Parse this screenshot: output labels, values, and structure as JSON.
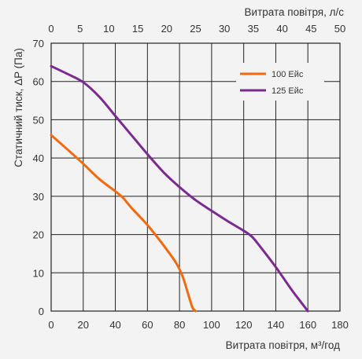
{
  "chart_data": {
    "type": "line",
    "title": "",
    "xlabel": "Витрата повітря, м³/год",
    "ylabel": "Статичний тиск, ΔP (Па)",
    "x2label": "Витрата повітря, л/с",
    "xlim": [
      0,
      180
    ],
    "ylim": [
      0,
      70
    ],
    "x2lim": [
      0,
      50
    ],
    "xticks": [
      "0",
      "20",
      "40",
      "60",
      "80",
      "100",
      "120",
      "140",
      "160",
      "180"
    ],
    "x2ticks": [
      "0",
      "5",
      "10",
      "15",
      "20",
      "25",
      "30",
      "35",
      "40",
      "45",
      "50"
    ],
    "yticks": [
      "0",
      "10",
      "20",
      "30",
      "40",
      "50",
      "60",
      "70"
    ],
    "grid": true,
    "legend_position": "top-right",
    "series": [
      {
        "name": "100 Ейс",
        "color": "#f26a10",
        "x": [
          0,
          10,
          20,
          30,
          40,
          45,
          50,
          60,
          70,
          78,
          82,
          85,
          88,
          90
        ],
        "y": [
          46,
          42.3,
          38.5,
          34.5,
          31.3,
          29.5,
          27,
          22.5,
          17.2,
          12.5,
          9,
          5,
          1,
          0
        ]
      },
      {
        "name": "125 Ейс",
        "color": "#7b2a91",
        "x": [
          0,
          10,
          20,
          30,
          40,
          50,
          60,
          70,
          80,
          90,
          100,
          110,
          120,
          125,
          130,
          140,
          150,
          160
        ],
        "y": [
          64,
          62,
          59.8,
          56,
          51,
          46,
          41,
          36.3,
          32.4,
          29,
          26.2,
          23.5,
          21,
          19.5,
          17,
          11.5,
          5.5,
          0
        ]
      }
    ]
  }
}
